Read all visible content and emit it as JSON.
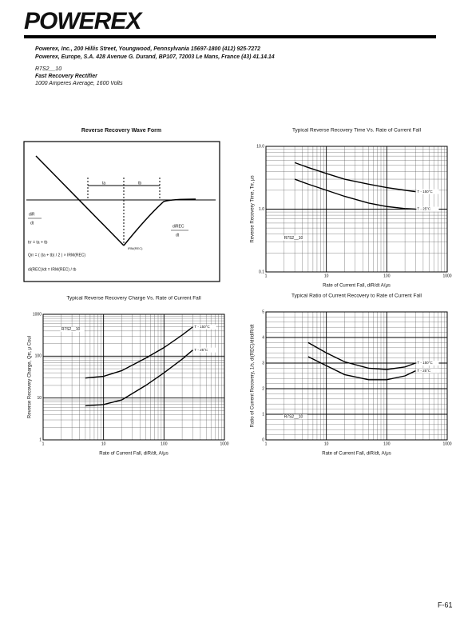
{
  "header": {
    "logo": "POWEREX",
    "address_us": "Powerex, Inc., 200 Hillis Street, Youngwood, Pennsylvania 15697-1800 (412) 925-7272",
    "address_eu": "Powerex, Europe, S.A. 428 Avenue G. Durand, BP107, 72003 Le Mans, France (43) 41.14.14",
    "part_number": "R7S2__10",
    "product": "Fast Recovery Rectifier",
    "rating": "1000 Amperes Average, 1600 Volts"
  },
  "diagram": {
    "title": "Reverse Recovery Wave Form",
    "ta": "ta",
    "tb": "tb",
    "dir": "diR",
    "dt": "dt",
    "direc": "diREC",
    "dt2": "dt",
    "irm": "IRM(REC)",
    "trr": "trr = ta + tb",
    "qrr": "Qrr = ( (ta + tb) / 2 ) × IRM(REC)",
    "direc_eq": "di(REC)/dt = IRM(REC) / tb"
  },
  "chart_data": [
    {
      "type": "line",
      "title": "Typical Reverse Recovery Time Vs. Rate of Current Fall",
      "xlabel": "Rate of Current Fall, diR/dt A/μs",
      "ylabel": "Reverse Recovery Time, Trr, μs",
      "xscale": "log",
      "yscale": "log",
      "xlim": [
        1,
        1000
      ],
      "ylim": [
        0.1,
        10
      ],
      "xticks": [
        1,
        10,
        100,
        1000
      ],
      "yticks": [
        0.1,
        {
          "value": 1,
          "label": "1.0"
        },
        {
          "value": 10,
          "label": "10.0"
        }
      ],
      "grid": true,
      "annotation": "R7S2__10",
      "x": [
        3,
        5,
        10,
        20,
        50,
        100,
        200,
        300
      ],
      "series": [
        {
          "name": "T - 150°C",
          "color": "#000000",
          "values": [
            5.5,
            4.6,
            3.7,
            3.0,
            2.5,
            2.2,
            2.0,
            1.9
          ]
        },
        {
          "name": "T - 25°C",
          "color": "#000000",
          "values": [
            3.0,
            2.5,
            2.0,
            1.6,
            1.25,
            1.1,
            1.02,
            1.0
          ]
        }
      ]
    },
    {
      "type": "line",
      "title": "Typical Reverse Recovery Charge Vs. Rate of Current Fall",
      "xlabel": "Rate of Current Fall, diR/dt, A/μs",
      "ylabel": "Reverse Recovery Charge, Qrr, μ Coul",
      "xscale": "log",
      "yscale": "log",
      "xlim": [
        1,
        1000
      ],
      "ylim": [
        1,
        1000
      ],
      "xticks": [
        1,
        10,
        100,
        1000
      ],
      "yticks": [
        1,
        10,
        100,
        1000
      ],
      "grid": true,
      "annotation": "R7S2__10",
      "x": [
        5,
        10,
        20,
        50,
        100,
        200,
        300
      ],
      "series": [
        {
          "name": "T - 150°C",
          "color": "#000000",
          "values": [
            30,
            33,
            45,
            90,
            160,
            320,
            500
          ]
        },
        {
          "name": "T - 25°C",
          "color": "#000000",
          "values": [
            6.5,
            7,
            9,
            20,
            40,
            85,
            140
          ]
        }
      ]
    },
    {
      "type": "line",
      "title": "Typical Ratio of Current Recovery to Rate of Current Fall",
      "xlabel": "Rate of Current Fall, diR/dt, A/μs",
      "ylabel": "Ratio of Current Recovery, 1/s, di(REC)/dt/diR/dt",
      "xscale": "log",
      "yscale": "linear",
      "xlim": [
        1,
        1000
      ],
      "ylim": [
        0,
        5
      ],
      "xticks": [
        1,
        10,
        100,
        1000
      ],
      "yticks": [
        0,
        1,
        2,
        3,
        4,
        5
      ],
      "grid": true,
      "annotation": "R7S2__10",
      "x": [
        5,
        10,
        20,
        50,
        100,
        200,
        300
      ],
      "series": [
        {
          "name": "T - 150°C",
          "color": "#000000",
          "values": [
            3.8,
            3.4,
            3.05,
            2.8,
            2.75,
            2.85,
            3.0
          ]
        },
        {
          "name": "T - 25°C",
          "color": "#000000",
          "values": [
            3.25,
            2.9,
            2.55,
            2.35,
            2.35,
            2.5,
            2.7
          ]
        }
      ]
    }
  ],
  "footer": {
    "page": "F-61"
  }
}
